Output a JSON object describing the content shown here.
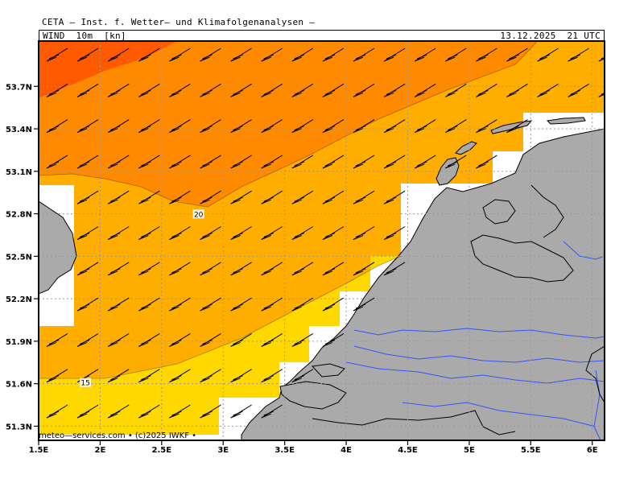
{
  "header": {
    "title": "CETA — Inst. f. Wetter— und Klimafolgenanalysen —",
    "variable": "WIND  10m  [kn]",
    "valid_time": "13.12.2025  21 UTC"
  },
  "footer": {
    "credit": "meteo—services.com • (c)2025 IWKF •"
  },
  "map": {
    "lon_labels": [
      "1.5E",
      "2E",
      "2.5E",
      "3E",
      "3.5E",
      "4E",
      "4.5E",
      "5E",
      "5.5E",
      "6E"
    ],
    "lon_values": [
      1.5,
      2,
      2.5,
      3,
      3.5,
      4,
      4.5,
      5,
      5.5,
      6
    ],
    "lat_labels": [
      "53.7N",
      "53.4N",
      "53.1N",
      "52.8N",
      "52.5N",
      "52.2N",
      "51.9N",
      "51.6N",
      "51.3N"
    ],
    "lat_values": [
      53.7,
      53.4,
      53.1,
      52.8,
      52.5,
      52.2,
      51.9,
      51.6,
      51.3
    ],
    "contour_labels": [
      {
        "text": "20",
        "lon": 2.8,
        "lat": 52.79
      },
      {
        "text": "15",
        "lon": 1.88,
        "lat": 51.6
      }
    ],
    "colors": {
      "band_25": "#ff5a00",
      "band_20": "#ff8a00",
      "band_15": "#ffae00",
      "band_10": "#ffd800",
      "land": "#aaaaaa",
      "coast": "#000000",
      "rivers": "#3355ff",
      "grid": "#999999"
    },
    "wind_barb_direction": "westerly, pointing north-east"
  }
}
